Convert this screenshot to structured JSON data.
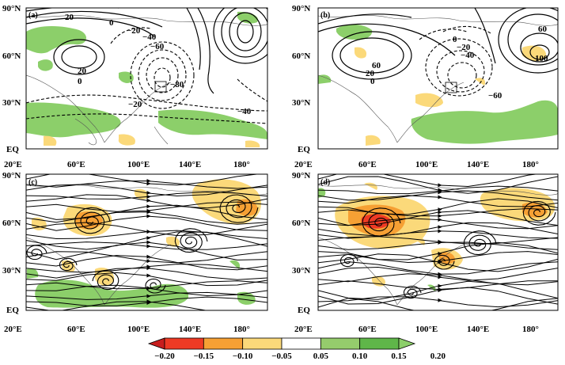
{
  "panels": [
    {
      "id": "a",
      "label": "(a)",
      "y_ticks": [
        "90°N",
        "60°N",
        "30°N",
        "EQ"
      ],
      "x_ticks": [
        "20°E",
        "60°E",
        "100°E",
        "140°E",
        "180°"
      ],
      "contour_labels": [
        "20",
        "0",
        "−20",
        "−40",
        "−60",
        "20",
        "0",
        "−80",
        "−20",
        "−40"
      ]
    },
    {
      "id": "b",
      "label": "(b)",
      "y_ticks": [
        "90°N",
        "60°N",
        "30°N",
        "EQ"
      ],
      "x_ticks": [
        "20°E",
        "60°E",
        "100°E",
        "140°E",
        "180°"
      ],
      "contour_labels": [
        "0",
        "−20",
        "−40",
        "60",
        "20",
        "0",
        "60",
        "100",
        "−60"
      ]
    },
    {
      "id": "c",
      "label": "(c)",
      "y_ticks": [
        "90°N",
        "60°N",
        "30°N",
        "EQ"
      ],
      "x_ticks": [
        "20°E",
        "60°E",
        "100°E",
        "140°E",
        "180°"
      ],
      "contour_labels": []
    },
    {
      "id": "d",
      "label": "(d)",
      "y_ticks": [
        "90°N",
        "60°N",
        "30°N",
        "EQ"
      ],
      "x_ticks": [
        "20°E",
        "60°E",
        "100°E",
        "140°E",
        "180°"
      ],
      "contour_labels": []
    }
  ],
  "colorbar": {
    "ticks": [
      "−0.20",
      "−0.15",
      "−0.10",
      "−0.05",
      "0.05",
      "0.10",
      "0.15",
      "0.20"
    ],
    "colors": [
      "#c81e1e",
      "#ee3a24",
      "#f6a034",
      "#fbd97a",
      "#ffffff",
      "#95cc6c",
      "#5fb649",
      "#8ccf6a"
    ]
  }
}
